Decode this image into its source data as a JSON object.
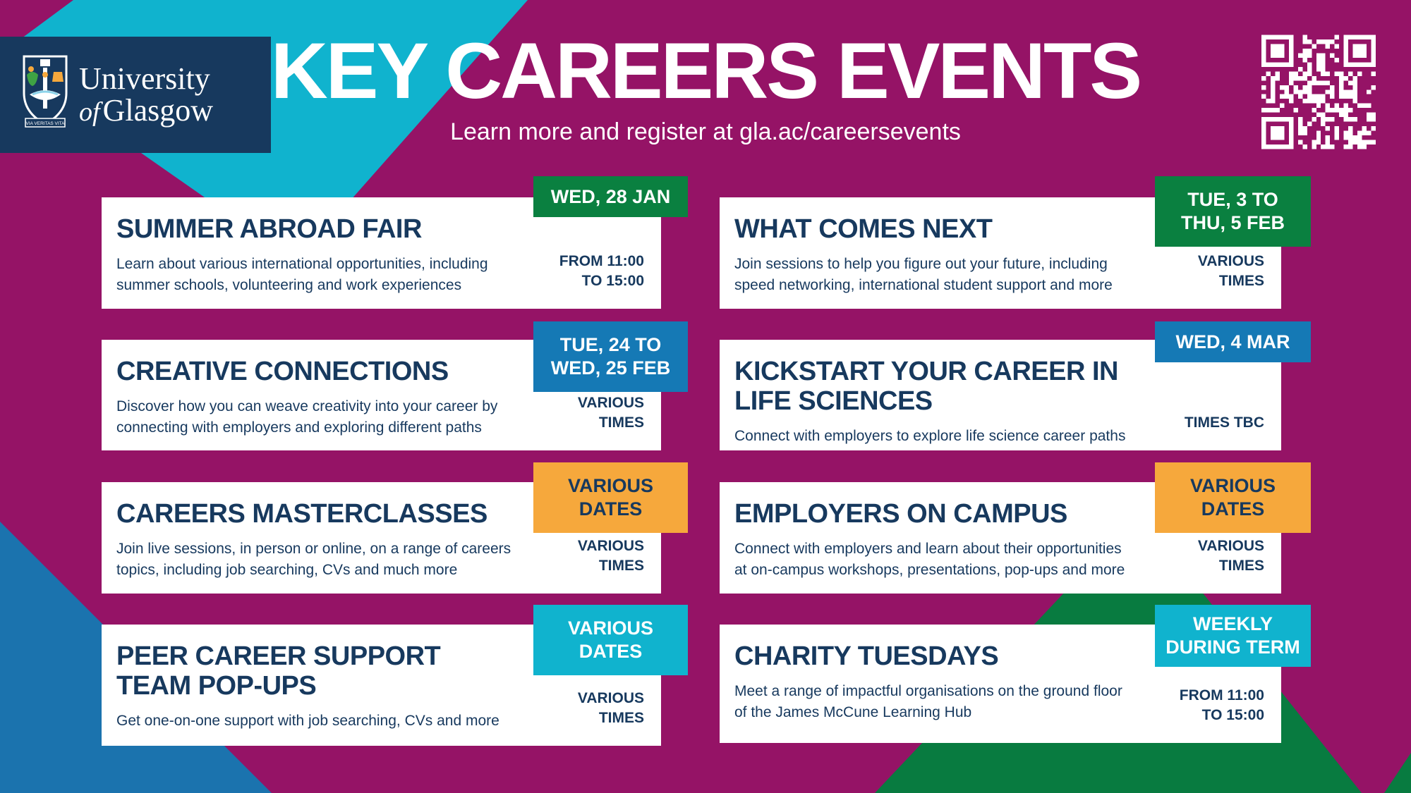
{
  "theme": {
    "magenta": "#951366",
    "cyan": "#10B3CE",
    "navy": "#17395E",
    "green": "#0A8040",
    "blue": "#1579B5",
    "orange": "#F6A83C",
    "tri-green": "#087B40",
    "tri-blue": "#1B73AE"
  },
  "header": {
    "title": "KEY CAREERS EVENTS",
    "subtitle": "Learn more and register at gla.ac/careersevents",
    "logo": {
      "line1": "University",
      "line2_italic": "of",
      "line2": "Glasgow",
      "motto": "VIA VERITAS VITA"
    }
  },
  "events": [
    {
      "title_lines": [
        "SUMMER ABROAD FAIR"
      ],
      "description": "Learn about various international opportunities, including summer schools, volunteering and work experiences",
      "badge": {
        "lines": [
          "WED, 28 JAN"
        ],
        "bg": "#0A8040",
        "fg": "#FFFFFF"
      },
      "time": [
        "FROM 11:00",
        "TO 15:00"
      ]
    },
    {
      "title_lines": [
        "CREATIVE CONNECTIONS"
      ],
      "description": "Discover how you can weave creativity into your career by connecting with employers and exploring different paths",
      "badge": {
        "lines": [
          "TUE, 24 TO",
          "WED, 25 FEB"
        ],
        "bg": "#1579B5",
        "fg": "#FFFFFF"
      },
      "time": [
        "VARIOUS",
        "TIMES"
      ]
    },
    {
      "title_lines": [
        "CAREERS MASTERCLASSES"
      ],
      "description": "Join live sessions, in person or online, on a range of careers topics, including job searching, CVs and much more",
      "badge": {
        "lines": [
          "VARIOUS",
          "DATES"
        ],
        "bg": "#F6A83C",
        "fg": "#17395E"
      },
      "time": [
        "VARIOUS",
        "TIMES"
      ]
    },
    {
      "title_lines": [
        "PEER CAREER SUPPORT",
        "TEAM POP-UPS"
      ],
      "description": "Get one-on-one support with job searching, CVs and more",
      "badge": {
        "lines": [
          "VARIOUS",
          "DATES"
        ],
        "bg": "#10B3CE",
        "fg": "#FFFFFF"
      },
      "time": [
        "VARIOUS",
        "TIMES"
      ]
    },
    {
      "title_lines": [
        "WHAT COMES NEXT"
      ],
      "description": "Join sessions to help you figure out your future, including speed networking, international student support and more",
      "badge": {
        "lines": [
          "TUE, 3 TO",
          "THU, 5 FEB"
        ],
        "bg": "#0A8040",
        "fg": "#FFFFFF"
      },
      "time": [
        "VARIOUS",
        "TIMES"
      ]
    },
    {
      "title_lines": [
        "KICKSTART YOUR CAREER IN",
        "LIFE SCIENCES"
      ],
      "description": "Connect with employers to explore life science career paths",
      "badge": {
        "lines": [
          "WED, 4 MAR"
        ],
        "bg": "#1579B5",
        "fg": "#FFFFFF"
      },
      "time": [
        "TIMES TBC"
      ]
    },
    {
      "title_lines": [
        "EMPLOYERS ON CAMPUS"
      ],
      "description": "Connect with employers and learn about their opportunities at on-campus workshops, presentations, pop-ups and more",
      "badge": {
        "lines": [
          "VARIOUS",
          "DATES"
        ],
        "bg": "#F6A83C",
        "fg": "#17395E"
      },
      "time": [
        "VARIOUS",
        "TIMES"
      ]
    },
    {
      "title_lines": [
        "CHARITY TUESDAYS"
      ],
      "description": "Meet a range of impactful organisations on the ground floor of the James McCune Learning Hub",
      "badge": {
        "lines": [
          "WEEKLY",
          "DURING TERM"
        ],
        "bg": "#10B3CE",
        "fg": "#FFFFFF"
      },
      "time": [
        "FROM 11:00",
        "TO 15:00"
      ]
    }
  ]
}
